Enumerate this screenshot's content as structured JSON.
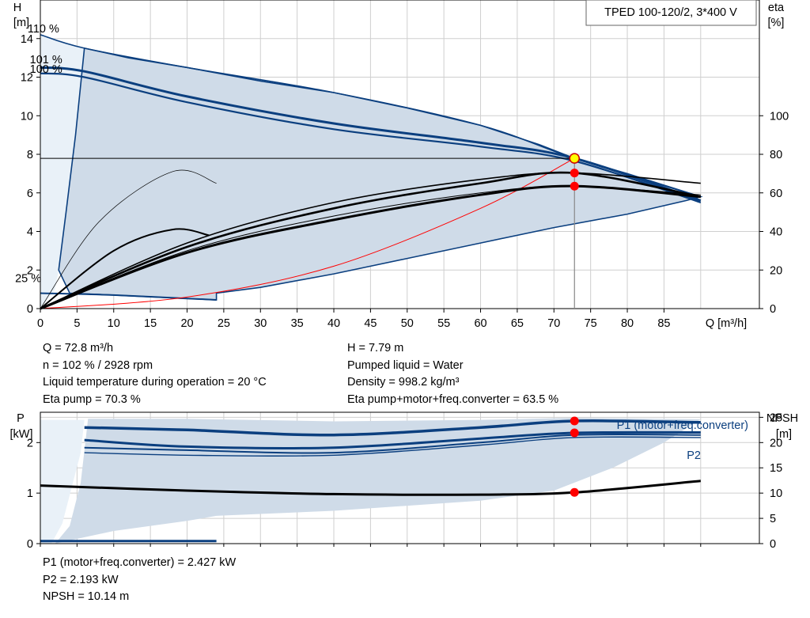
{
  "chart_data": [
    {
      "type": "line",
      "title": "TPED 100-120/2, 3*400 V",
      "y_label_left": "H",
      "y_unit_left": "[m]",
      "y_label_right": "eta",
      "y_unit_right": "[%]",
      "x_label": "Q [m³/h]",
      "xlim": [
        0,
        98
      ],
      "ylim_left": [
        0,
        16
      ],
      "ylim_right": [
        0,
        160
      ],
      "x_ticks": [
        "0",
        "5",
        "10",
        "15",
        "20",
        "25",
        "30",
        "35",
        "40",
        "45",
        "50",
        "55",
        "60",
        "65",
        "70",
        "75",
        "80",
        "85"
      ],
      "y_ticks_left": [
        "0",
        "2",
        "4",
        "6",
        "8",
        "10",
        "12",
        "14"
      ],
      "y_ticks_right": [
        "0",
        "20",
        "40",
        "60",
        "80",
        "100"
      ],
      "grid": true,
      "curve_labels": [
        {
          "text": "110 %",
          "x": 0.2,
          "y": 14.2
        },
        {
          "text": "101 %",
          "x": 0.5,
          "y": 12.6
        },
        {
          "text": "100 %",
          "x": 0.5,
          "y": 12.1
        },
        {
          "text": "25 %",
          "x": -1.5,
          "y": 1.25
        }
      ],
      "series": [
        {
          "role": "head-110",
          "values": [
            [
              0,
              14.2
            ],
            [
              6,
              13.5
            ],
            [
              20,
              12.5
            ],
            [
              40,
              11.2
            ],
            [
              60,
              9.5
            ],
            [
              72.8,
              7.79
            ],
            [
              90,
              5.8
            ]
          ]
        },
        {
          "role": "head-101",
          "values": [
            [
              0,
              12.5
            ],
            [
              6,
              12.3
            ],
            [
              20,
              11
            ],
            [
              40,
              9.6
            ],
            [
              60,
              8.6
            ],
            [
              72.8,
              7.79
            ],
            [
              90,
              5.6
            ]
          ]
        },
        {
          "role": "head-100",
          "values": [
            [
              0,
              12.2
            ],
            [
              6,
              12
            ],
            [
              20,
              10.7
            ],
            [
              40,
              9.3
            ],
            [
              60,
              8.4
            ],
            [
              72.8,
              7.65
            ],
            [
              90,
              5.5
            ]
          ]
        },
        {
          "role": "head-25",
          "values": [
            [
              0,
              0.8
            ],
            [
              10,
              0.7
            ],
            [
              24,
              0.45
            ]
          ]
        },
        {
          "role": "system-curve",
          "values": [
            [
              0,
              0
            ],
            [
              20,
              0.6
            ],
            [
              40,
              2.2
            ],
            [
              60,
              5.2
            ],
            [
              72.8,
              7.79
            ]
          ]
        },
        {
          "role": "eta-pump-110",
          "values": [
            [
              0,
              0
            ],
            [
              20,
              34
            ],
            [
              40,
              55
            ],
            [
              60,
              67
            ],
            [
              72.8,
              70.3
            ],
            [
              90,
              65
            ]
          ]
        },
        {
          "role": "eta-pump-101",
          "values": [
            [
              0,
              0
            ],
            [
              20,
              32
            ],
            [
              40,
              52
            ],
            [
              60,
              65
            ],
            [
              72.8,
              70.3
            ],
            [
              90,
              58
            ]
          ]
        },
        {
          "role": "eta-total-110",
          "values": [
            [
              0,
              0
            ],
            [
              20,
              30
            ],
            [
              40,
              48
            ],
            [
              60,
              60
            ],
            [
              72.8,
              63.5
            ],
            [
              90,
              59
            ]
          ]
        },
        {
          "role": "eta-total-101",
          "values": [
            [
              0,
              0
            ],
            [
              20,
              29
            ],
            [
              40,
              46
            ],
            [
              60,
              59
            ],
            [
              72.8,
              63.5
            ],
            [
              90,
              58
            ]
          ]
        },
        {
          "role": "eta-25-thin",
          "values": [
            [
              0,
              0
            ],
            [
              8,
              45
            ],
            [
              18,
              71
            ],
            [
              24,
              65
            ]
          ]
        },
        {
          "role": "eta-25-thick",
          "values": [
            [
              0,
              0
            ],
            [
              10,
              30
            ],
            [
              18,
              41
            ],
            [
              23,
              38
            ]
          ]
        }
      ],
      "operating_points": [
        {
          "x": 72.8,
          "y": 7.79,
          "axis": "left",
          "style": "yellow"
        },
        {
          "x": 72.8,
          "y": 70.3,
          "axis": "right",
          "style": "red"
        },
        {
          "x": 72.8,
          "y": 63.5,
          "axis": "right",
          "style": "red"
        }
      ]
    },
    {
      "type": "line",
      "y_label_left": "P",
      "y_unit_left": "[kW]",
      "y_label_right": "NPSH",
      "y_unit_right": "[m]",
      "xlim": [
        0,
        98
      ],
      "ylim_left": [
        0,
        2.6
      ],
      "ylim_right": [
        0,
        26
      ],
      "y_ticks_left": [
        "0",
        "1",
        "2"
      ],
      "y_ticks_right": [
        "0",
        "5",
        "10",
        "15",
        "20",
        "25"
      ],
      "grid": true,
      "series": [
        {
          "role": "P1",
          "name": "P1 (motor+freq.converter)",
          "values": [
            [
              6,
              2.3
            ],
            [
              20,
              2.25
            ],
            [
              40,
              2.15
            ],
            [
              60,
              2.3
            ],
            [
              72.8,
              2.427
            ],
            [
              90,
              2.4
            ]
          ]
        },
        {
          "role": "P2",
          "name": "P2",
          "values": [
            [
              6,
              2.05
            ],
            [
              20,
              1.92
            ],
            [
              40,
              1.9
            ],
            [
              60,
              2.08
            ],
            [
              72.8,
              2.193
            ],
            [
              90,
              2.2
            ]
          ]
        },
        {
          "role": "P1-alt",
          "values": [
            [
              6,
              1.9
            ],
            [
              20,
              1.85
            ],
            [
              40,
              1.8
            ],
            [
              60,
              2
            ],
            [
              72.8,
              2.15
            ],
            [
              90,
              2.15
            ]
          ]
        },
        {
          "role": "P2-alt",
          "values": [
            [
              6,
              1.8
            ],
            [
              20,
              1.75
            ],
            [
              40,
              1.75
            ],
            [
              60,
              1.95
            ],
            [
              72.8,
              2.1
            ],
            [
              90,
              2.1
            ]
          ]
        },
        {
          "role": "NPSH",
          "values": [
            [
              0,
              11.5
            ],
            [
              20,
              10.5
            ],
            [
              40,
              9.8
            ],
            [
              60,
              9.7
            ],
            [
              72.8,
              10.14
            ],
            [
              90,
              12.4
            ]
          ]
        },
        {
          "role": "P-25",
          "values": [
            [
              0,
              0.05
            ],
            [
              24,
              0.05
            ]
          ]
        }
      ],
      "operating_points": [
        {
          "x": 72.8,
          "y": 2.427,
          "axis": "left"
        },
        {
          "x": 72.8,
          "y": 2.193,
          "axis": "left"
        },
        {
          "x": 72.8,
          "y": 10.14,
          "axis": "right"
        }
      ]
    }
  ],
  "info_left": [
    "Q = 72.8 m³/h",
    "n = 102 % / 2928 rpm",
    "Liquid temperature during operation = 20 °C",
    "Eta pump = 70.3 %"
  ],
  "info_right": [
    "H = 7.79 m",
    "Pumped liquid = Water",
    "Density = 998.2 kg/m³",
    "Eta pump+motor+freq.converter = 63.5 %"
  ],
  "info_bottom": [
    "P1 (motor+freq.converter) = 2.427 kW",
    "P2 = 2.193 kW",
    "NPSH = 10.14 m"
  ],
  "colors": {
    "curve_blue": "#0b3f7f",
    "area_fill": "#cfdbe8",
    "area_light": "#e9f1f8",
    "point_red": "#ff0000",
    "point_yellow": "#ffff00",
    "grid": "#cfcfcf"
  }
}
